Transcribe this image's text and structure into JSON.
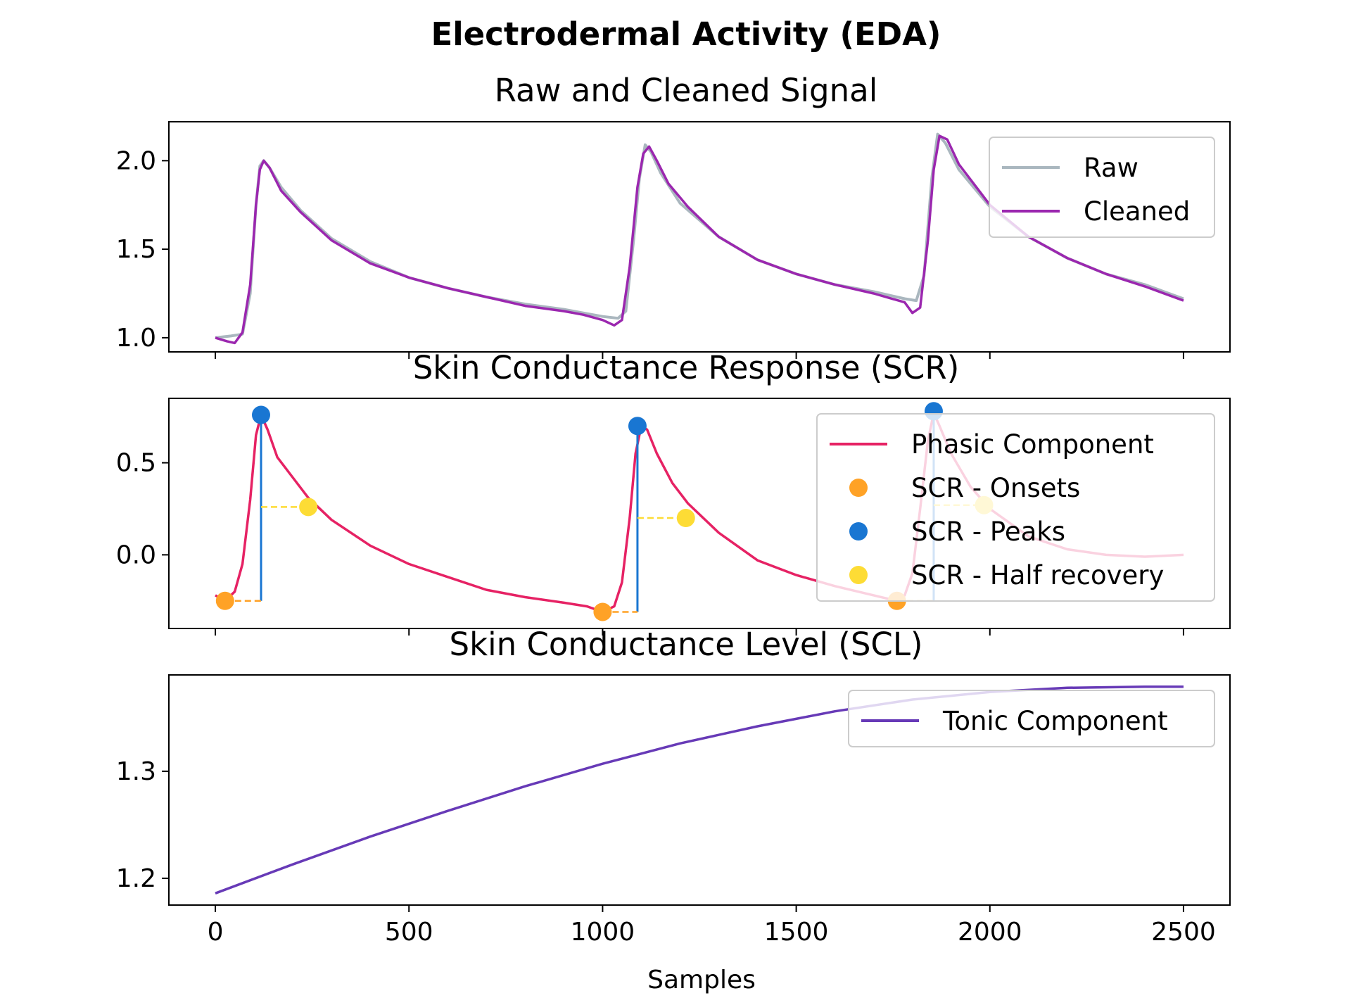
{
  "chart_data": [
    {
      "type": "line",
      "suptitle": "Electrodermal Activity (EDA)",
      "title": "Raw and Cleaned Signal",
      "xlabel": "",
      "ylabel": "",
      "xlim": [
        -120,
        2620
      ],
      "ylim": [
        0.92,
        2.22
      ],
      "yticks": [
        1.0,
        1.5,
        2.0
      ],
      "ytick_labels": [
        "1.0",
        "1.5",
        "2.0"
      ],
      "legend_position": "upper right",
      "series": [
        {
          "name": "Raw",
          "color": "#aab7bf",
          "points": [
            [
              0,
              1.0
            ],
            [
              40,
              1.01
            ],
            [
              70,
              1.02
            ],
            [
              90,
              1.25
            ],
            [
              105,
              1.75
            ],
            [
              115,
              1.97
            ],
            [
              125,
              2.0
            ],
            [
              140,
              1.96
            ],
            [
              170,
              1.85
            ],
            [
              220,
              1.72
            ],
            [
              300,
              1.56
            ],
            [
              400,
              1.43
            ],
            [
              500,
              1.34
            ],
            [
              600,
              1.28
            ],
            [
              700,
              1.23
            ],
            [
              800,
              1.19
            ],
            [
              900,
              1.16
            ],
            [
              950,
              1.14
            ],
            [
              1000,
              1.12
            ],
            [
              1040,
              1.11
            ],
            [
              1060,
              1.15
            ],
            [
              1080,
              1.55
            ],
            [
              1095,
              1.9
            ],
            [
              1110,
              2.09
            ],
            [
              1125,
              2.05
            ],
            [
              1150,
              1.93
            ],
            [
              1200,
              1.76
            ],
            [
              1300,
              1.57
            ],
            [
              1400,
              1.44
            ],
            [
              1500,
              1.36
            ],
            [
              1600,
              1.3
            ],
            [
              1700,
              1.26
            ],
            [
              1780,
              1.22
            ],
            [
              1810,
              1.21
            ],
            [
              1830,
              1.35
            ],
            [
              1850,
              1.9
            ],
            [
              1865,
              2.15
            ],
            [
              1885,
              2.1
            ],
            [
              1920,
              1.95
            ],
            [
              2000,
              1.74
            ],
            [
              2100,
              1.57
            ],
            [
              2200,
              1.45
            ],
            [
              2300,
              1.36
            ],
            [
              2400,
              1.3
            ],
            [
              2500,
              1.22
            ]
          ]
        },
        {
          "name": "Cleaned",
          "color": "#9b27af",
          "points": [
            [
              0,
              1.0
            ],
            [
              30,
              0.98
            ],
            [
              50,
              0.97
            ],
            [
              70,
              1.03
            ],
            [
              90,
              1.3
            ],
            [
              105,
              1.75
            ],
            [
              115,
              1.95
            ],
            [
              125,
              2.0
            ],
            [
              140,
              1.96
            ],
            [
              170,
              1.83
            ],
            [
              220,
              1.71
            ],
            [
              300,
              1.55
            ],
            [
              400,
              1.42
            ],
            [
              500,
              1.34
            ],
            [
              600,
              1.28
            ],
            [
              700,
              1.23
            ],
            [
              800,
              1.18
            ],
            [
              900,
              1.15
            ],
            [
              950,
              1.13
            ],
            [
              1000,
              1.1
            ],
            [
              1030,
              1.07
            ],
            [
              1050,
              1.1
            ],
            [
              1070,
              1.4
            ],
            [
              1090,
              1.85
            ],
            [
              1105,
              2.04
            ],
            [
              1120,
              2.08
            ],
            [
              1140,
              2.0
            ],
            [
              1170,
              1.87
            ],
            [
              1220,
              1.74
            ],
            [
              1300,
              1.57
            ],
            [
              1400,
              1.44
            ],
            [
              1500,
              1.36
            ],
            [
              1600,
              1.3
            ],
            [
              1700,
              1.25
            ],
            [
              1780,
              1.2
            ],
            [
              1800,
              1.14
            ],
            [
              1820,
              1.17
            ],
            [
              1840,
              1.55
            ],
            [
              1855,
              1.95
            ],
            [
              1870,
              2.14
            ],
            [
              1890,
              2.12
            ],
            [
              1920,
              1.98
            ],
            [
              2000,
              1.75
            ],
            [
              2100,
              1.57
            ],
            [
              2200,
              1.45
            ],
            [
              2300,
              1.36
            ],
            [
              2400,
              1.29
            ],
            [
              2500,
              1.21
            ]
          ]
        }
      ]
    },
    {
      "type": "line",
      "title": "Skin Conductance Response (SCR)",
      "xlabel": "",
      "ylabel": "",
      "xlim": [
        -120,
        2620
      ],
      "ylim": [
        -0.4,
        0.85
      ],
      "yticks": [
        0.0,
        0.5
      ],
      "ytick_labels": [
        "0.0",
        "0.5"
      ],
      "legend_position": "upper right",
      "series": [
        {
          "name": "Phasic Component",
          "color": "#e62264",
          "points": [
            [
              0,
              -0.22
            ],
            [
              25,
              -0.25
            ],
            [
              50,
              -0.2
            ],
            [
              70,
              -0.05
            ],
            [
              90,
              0.3
            ],
            [
              105,
              0.65
            ],
            [
              118,
              0.76
            ],
            [
              135,
              0.68
            ],
            [
              160,
              0.53
            ],
            [
              200,
              0.42
            ],
            [
              240,
              0.31
            ],
            [
              300,
              0.19
            ],
            [
              400,
              0.05
            ],
            [
              500,
              -0.05
            ],
            [
              600,
              -0.12
            ],
            [
              700,
              -0.19
            ],
            [
              800,
              -0.23
            ],
            [
              900,
              -0.26
            ],
            [
              960,
              -0.28
            ],
            [
              1000,
              -0.31
            ],
            [
              1030,
              -0.28
            ],
            [
              1050,
              -0.15
            ],
            [
              1070,
              0.2
            ],
            [
              1085,
              0.55
            ],
            [
              1100,
              0.7
            ],
            [
              1115,
              0.68
            ],
            [
              1140,
              0.55
            ],
            [
              1180,
              0.39
            ],
            [
              1220,
              0.28
            ],
            [
              1300,
              0.12
            ],
            [
              1400,
              -0.03
            ],
            [
              1500,
              -0.11
            ],
            [
              1600,
              -0.17
            ],
            [
              1700,
              -0.22
            ],
            [
              1760,
              -0.25
            ],
            [
              1780,
              -0.22
            ],
            [
              1800,
              -0.1
            ],
            [
              1820,
              0.25
            ],
            [
              1840,
              0.62
            ],
            [
              1855,
              0.77
            ],
            [
              1870,
              0.7
            ],
            [
              1900,
              0.55
            ],
            [
              1950,
              0.37
            ],
            [
              2000,
              0.25
            ],
            [
              2100,
              0.1
            ],
            [
              2200,
              0.03
            ],
            [
              2300,
              0.0
            ],
            [
              2400,
              -0.01
            ],
            [
              2500,
              0.0
            ]
          ]
        }
      ],
      "onsets": {
        "name": "SCR - Onsets",
        "color": "#ffa226",
        "x": [
          25,
          1000,
          1760
        ],
        "y": [
          -0.25,
          -0.31,
          -0.25
        ]
      },
      "peaks": {
        "name": "SCR - Peaks",
        "color": "#1976d2",
        "x": [
          118,
          1090,
          1855
        ],
        "y": [
          0.76,
          0.7,
          0.78
        ]
      },
      "half_recovery": {
        "name": "SCR - Half recovery",
        "color": "#fddc35",
        "x": [
          240,
          1215,
          1985
        ],
        "y": [
          0.26,
          0.2,
          0.27
        ]
      }
    },
    {
      "type": "line",
      "title": "Skin Conductance Level (SCL)",
      "xlabel": "Samples",
      "ylabel": "",
      "xlim": [
        -120,
        2620
      ],
      "ylim": [
        1.175,
        1.39
      ],
      "xticks": [
        0,
        500,
        1000,
        1500,
        2000,
        2500
      ],
      "xtick_labels": [
        "0",
        "500",
        "1000",
        "1500",
        "2000",
        "2500"
      ],
      "yticks": [
        1.2,
        1.3
      ],
      "ytick_labels": [
        "1.2",
        "1.3"
      ],
      "legend_position": "upper right",
      "series": [
        {
          "name": "Tonic Component",
          "color": "#673ab7",
          "points": [
            [
              0,
              1.186
            ],
            [
              200,
              1.213
            ],
            [
              400,
              1.239
            ],
            [
              600,
              1.263
            ],
            [
              800,
              1.286
            ],
            [
              1000,
              1.307
            ],
            [
              1200,
              1.326
            ],
            [
              1400,
              1.342
            ],
            [
              1600,
              1.356
            ],
            [
              1800,
              1.367
            ],
            [
              2000,
              1.374
            ],
            [
              2200,
              1.378
            ],
            [
              2400,
              1.379
            ],
            [
              2500,
              1.379
            ]
          ]
        }
      ]
    }
  ]
}
